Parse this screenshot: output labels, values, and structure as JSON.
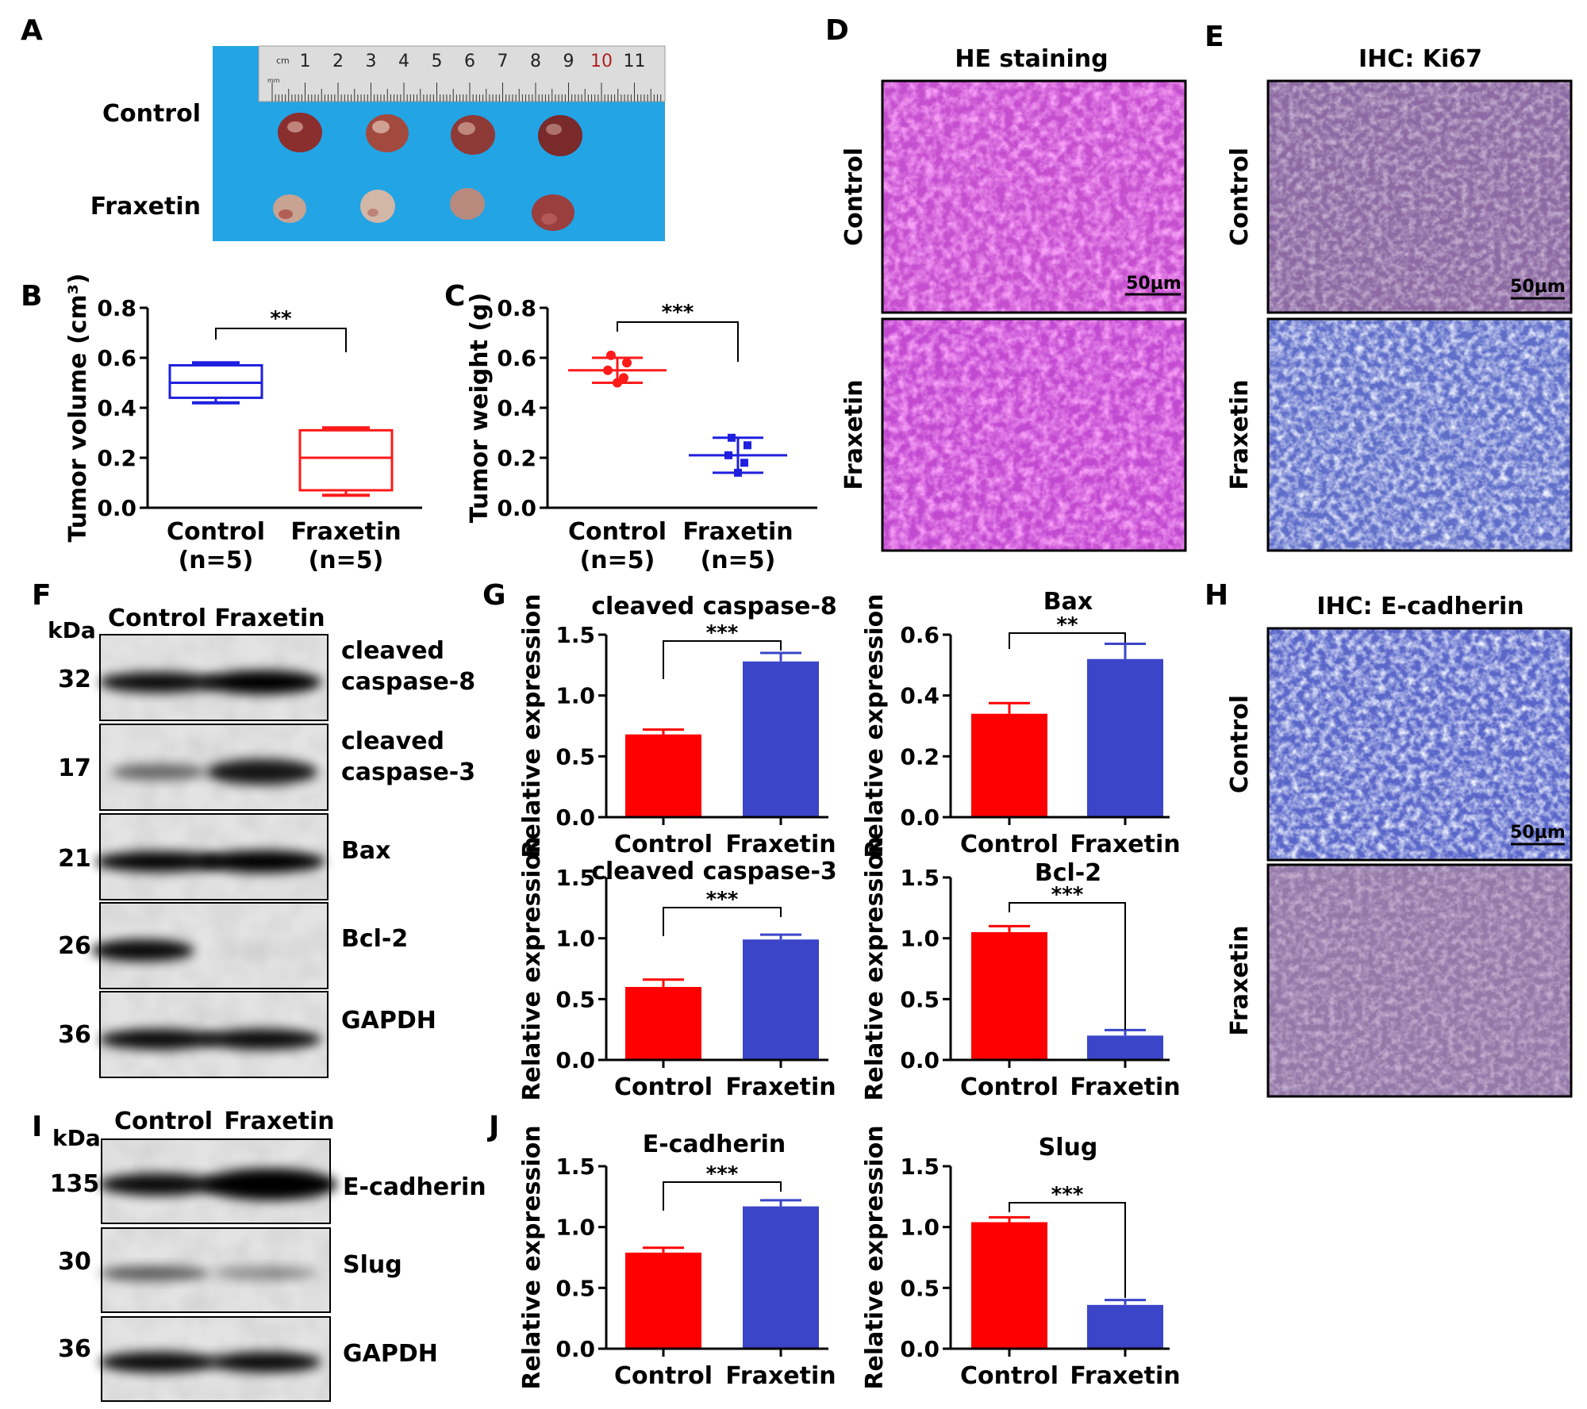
{
  "colors": {
    "control": "#ff0000",
    "fraxetin": "#3b45c8",
    "he": "#d14dd4",
    "ihc_blue": "#5a67c9",
    "ihc_brown": "#9a6f8a"
  },
  "panel_letters": [
    "A",
    "B",
    "C",
    "D",
    "E",
    "F",
    "G",
    "H",
    "I",
    "J"
  ],
  "panelA": {
    "rows": [
      "Control",
      "Fraxetin"
    ],
    "ruler": {
      "unit_cm": "cm",
      "unit_mm": "mm",
      "numbers": [
        "1",
        "2",
        "3",
        "4",
        "5",
        "6",
        "7",
        "8",
        "9",
        "10",
        "11"
      ]
    }
  },
  "panelB": {
    "ylabel": "Tumor volume (cm³)",
    "ticks": [
      "0.0",
      "0.2",
      "0.4",
      "0.6",
      "0.8"
    ],
    "sig": "**"
  },
  "panelC": {
    "ylabel": "Tumor weight (g)",
    "ticks": [
      "0.0",
      "0.2",
      "0.4",
      "0.6",
      "0.8"
    ],
    "sig": "***"
  },
  "group_labels": [
    "Control",
    "(n=5)",
    "Fraxetin",
    "(n=5)"
  ],
  "panelD": {
    "title": "HE staining",
    "rows": [
      "Control",
      "Fraxetin"
    ],
    "scalebar": "50μm"
  },
  "panelE": {
    "title": "IHC: Ki67",
    "rows": [
      "Control",
      "Fraxetin"
    ],
    "scalebar": "50μm"
  },
  "panelH": {
    "title": "IHC: E-cadherin",
    "rows": [
      "Control",
      "Fraxetin"
    ],
    "scalebar": "50μm"
  },
  "panelF": {
    "kda": "kDa",
    "lanes": [
      "Control",
      "Fraxetin"
    ],
    "blots": [
      {
        "kda": "32",
        "label1": "cleaved",
        "label2": "caspase-8"
      },
      {
        "kda": "17",
        "label1": "cleaved",
        "label2": "caspase-3"
      },
      {
        "kda": "21",
        "label1": "Bax",
        "label2": ""
      },
      {
        "kda": "26",
        "label1": "Bcl-2",
        "label2": ""
      },
      {
        "kda": "36",
        "label1": "GAPDH",
        "label2": ""
      }
    ]
  },
  "panelI": {
    "kda": "kDa",
    "lanes": [
      "Control",
      "Fraxetin"
    ],
    "blots": [
      {
        "kda": "135",
        "label1": "E-cadherin"
      },
      {
        "kda": "30",
        "label1": "Slug"
      },
      {
        "kda": "36",
        "label1": "GAPDH"
      }
    ]
  },
  "chart_data": [
    {
      "panel": "B",
      "type": "box",
      "ylabel": "Tumor volume (cm³)",
      "ylim": [
        0,
        0.8
      ],
      "categories": [
        "Control (n=5)",
        "Fraxetin (n=5)"
      ],
      "series": [
        {
          "name": "Control",
          "min": 0.42,
          "q1": 0.44,
          "median": 0.5,
          "q3": 0.57,
          "max": 0.58
        },
        {
          "name": "Fraxetin",
          "min": 0.05,
          "q1": 0.07,
          "median": 0.2,
          "q3": 0.31,
          "max": 0.32
        }
      ],
      "significance": "**"
    },
    {
      "panel": "C",
      "type": "scatter",
      "ylabel": "Tumor weight (g)",
      "ylim": [
        0,
        0.8
      ],
      "categories": [
        "Control (n=5)",
        "Fraxetin (n=5)"
      ],
      "series": [
        {
          "name": "Control",
          "points": [
            0.61,
            0.58,
            0.55,
            0.52,
            0.5
          ],
          "mean": 0.55,
          "sd": 0.05
        },
        {
          "name": "Fraxetin",
          "points": [
            0.28,
            0.25,
            0.21,
            0.18,
            0.14
          ],
          "mean": 0.21,
          "sd": 0.07
        }
      ],
      "significance": "***"
    },
    {
      "panel": "G",
      "type": "bar",
      "title": "cleaved caspase-8",
      "ylabel": "Relative expression",
      "ylim": [
        0,
        1.5
      ],
      "ticks": [
        "0.0",
        "0.5",
        "1.0",
        "1.5"
      ],
      "categories": [
        "Control",
        "Fraxetin"
      ],
      "values": [
        0.68,
        1.28
      ],
      "errors": [
        0.04,
        0.07
      ],
      "significance": "***"
    },
    {
      "panel": "G",
      "type": "bar",
      "title": "Bax",
      "ylabel": "Relative expression",
      "ylim": [
        0,
        0.6
      ],
      "ticks": [
        "0.0",
        "0.2",
        "0.4",
        "0.6"
      ],
      "categories": [
        "Control",
        "Fraxetin"
      ],
      "values": [
        0.34,
        0.52
      ],
      "errors": [
        0.035,
        0.05
      ],
      "significance": "**"
    },
    {
      "panel": "G",
      "type": "bar",
      "title": "cleaved caspase-3",
      "ylabel": "Relative expression",
      "ylim": [
        0,
        1.5
      ],
      "ticks": [
        "0.0",
        "0.5",
        "1.0",
        "1.5"
      ],
      "categories": [
        "Control",
        "Fraxetin"
      ],
      "values": [
        0.6,
        0.99
      ],
      "errors": [
        0.06,
        0.04
      ],
      "significance": "***"
    },
    {
      "panel": "G",
      "type": "bar",
      "title": "Bcl-2",
      "ylabel": "Relative expression",
      "ylim": [
        0,
        1.5
      ],
      "ticks": [
        "0.0",
        "0.5",
        "1.0",
        "1.5"
      ],
      "categories": [
        "Control",
        "Fraxetin"
      ],
      "values": [
        1.05,
        0.2
      ],
      "errors": [
        0.05,
        0.045
      ],
      "significance": "***"
    },
    {
      "panel": "J",
      "type": "bar",
      "title": "E-cadherin",
      "ylabel": "Relative expression",
      "ylim": [
        0,
        1.5
      ],
      "ticks": [
        "0.0",
        "0.5",
        "1.0",
        "1.5"
      ],
      "categories": [
        "Control",
        "Fraxetin"
      ],
      "values": [
        0.79,
        1.17
      ],
      "errors": [
        0.04,
        0.05
      ],
      "significance": "***"
    },
    {
      "panel": "J",
      "type": "bar",
      "title": "Slug",
      "ylabel": "Relative expression",
      "ylim": [
        0,
        1.5
      ],
      "ticks": [
        "0.0",
        "0.5",
        "1.0",
        "1.5"
      ],
      "categories": [
        "Control",
        "Fraxetin"
      ],
      "values": [
        1.04,
        0.36
      ],
      "errors": [
        0.04,
        0.04
      ],
      "significance": "***"
    }
  ]
}
